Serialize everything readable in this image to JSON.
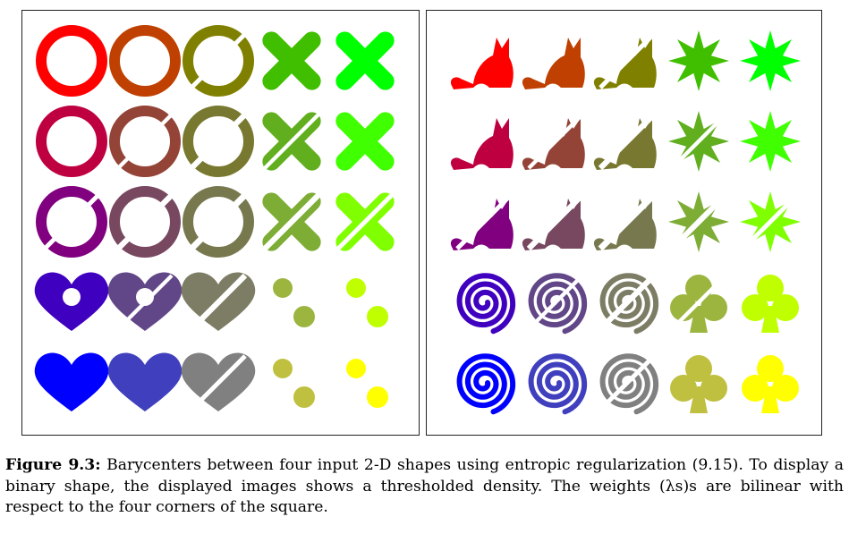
{
  "figure": {
    "label": "Figure 9.3:",
    "caption": "Barycenters between four input 2-D shapes using entropic regularization (9.15). To display a binary shape, the displayed images shows a thresholded density. The weights (λs)s are bilinear with respect to the four corners of the square."
  },
  "grid": {
    "rows": 5,
    "cols": 5
  },
  "corner_colors": {
    "top_left": "#ff0000",
    "top_right": "#00ff00",
    "bottom_left": "#0000ff",
    "bottom_right": "#ffff00"
  },
  "left_panel": {
    "corner_shapes": {
      "top_left": "ring",
      "top_right": "cross",
      "bottom_left": "heart",
      "bottom_right": "two-disks"
    }
  },
  "right_panel": {
    "corner_shapes": {
      "top_left": "cat",
      "top_right": "star",
      "bottom_left": "spiral",
      "bottom_right": "club"
    }
  }
}
